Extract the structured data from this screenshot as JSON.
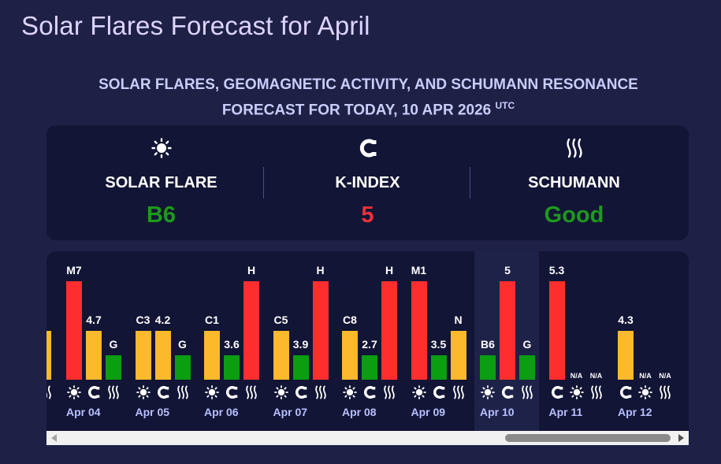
{
  "page": {
    "title": "Solar Flares Forecast for April"
  },
  "subtitle": {
    "line1": "SOLAR FLARES, GEOMAGNETIC ACTIVITY, AND SCHUMANN RESONANCE",
    "line2": "FORECAST FOR TODAY, 10 APR 2026",
    "utc": "UTC"
  },
  "summary": {
    "solar": {
      "label": "SOLAR FLARE",
      "value": "B6",
      "icon": "sun-icon",
      "color": "#1d9a1d"
    },
    "kindex": {
      "label": "K-INDEX",
      "value": "5",
      "icon": "magnet-icon",
      "color": "#f0303a"
    },
    "schumann": {
      "label": "SCHUMANN",
      "value": "Good",
      "icon": "waves-icon",
      "color": "#1d9a1d"
    }
  },
  "colors": {
    "red": "#ff2e2e",
    "yellow": "#fbb92b",
    "green": "#0a9e10"
  },
  "timeline": {
    "partial_day": {
      "solar_label": "",
      "kindex": "",
      "schumann": ""
    },
    "days": [
      {
        "date": "Apr 04",
        "solar_label": "M7",
        "kindex_label": "4.7",
        "schumann_label": "G"
      },
      {
        "date": "Apr 05",
        "solar_label": "C3",
        "kindex_label": "4.2",
        "schumann_label": "G"
      },
      {
        "date": "Apr 06",
        "solar_label": "C1",
        "kindex_label": "3.6",
        "schumann_label": "H"
      },
      {
        "date": "Apr 07",
        "solar_label": "C5",
        "kindex_label": "3.9",
        "schumann_label": "H"
      },
      {
        "date": "Apr 08",
        "solar_label": "C8",
        "kindex_label": "2.7",
        "schumann_label": "H"
      },
      {
        "date": "Apr 09",
        "solar_label": "M1",
        "kindex_label": "3.5",
        "schumann_label": "N"
      },
      {
        "date": "Apr 10",
        "solar_label": "B6",
        "kindex_label": "5",
        "schumann_label": "G"
      },
      {
        "date": "Apr 11",
        "solar_label": "N/A",
        "kindex_label": "5.3",
        "schumann_label": "N/A"
      },
      {
        "date": "Apr 12",
        "solar_label": "N/A",
        "kindex_label": "4.3",
        "schumann_label": "N/A"
      }
    ]
  }
}
